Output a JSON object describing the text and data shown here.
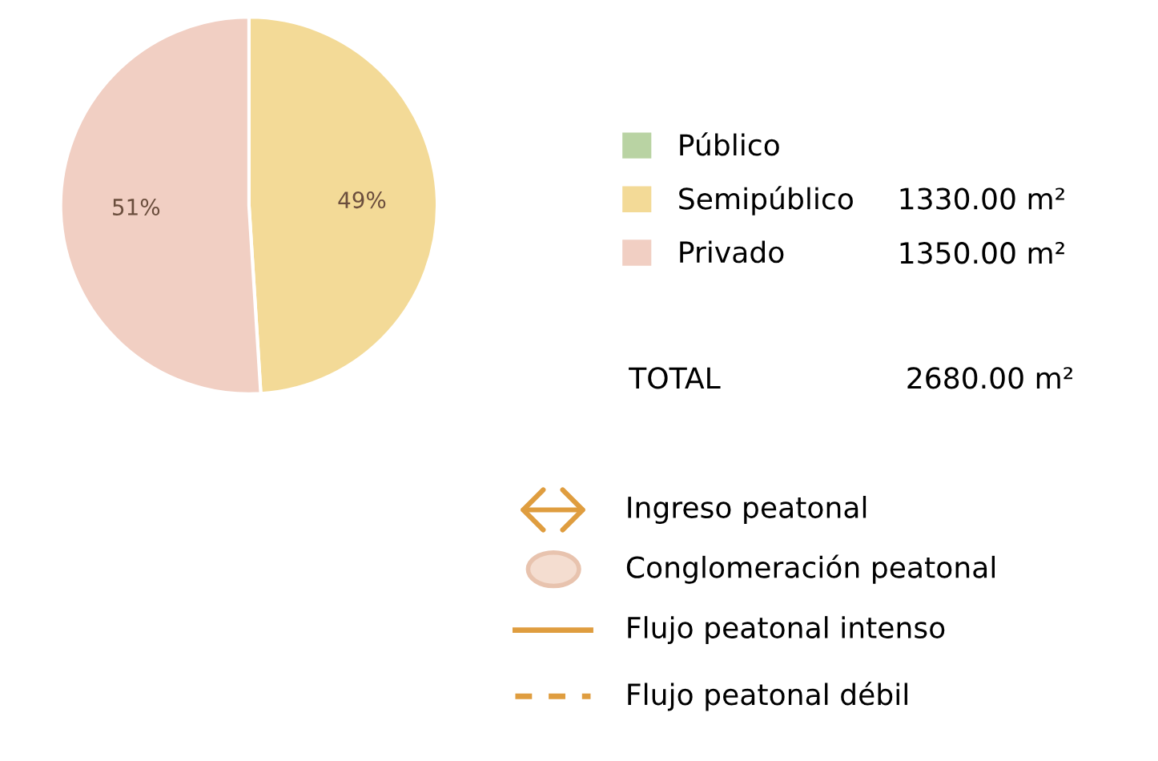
{
  "chart_data": {
    "type": "pie",
    "categories": [
      "Público",
      "Semipúblico",
      "Privado"
    ],
    "values": [
      null,
      49,
      51
    ],
    "colors": [
      "#b9d3a3",
      "#f3da97",
      "#f1cfc3"
    ],
    "value_labels": [
      null,
      "49%",
      "51%"
    ],
    "legend": "right",
    "annotations": [
      "1330.00 m²",
      "1350.00 m²",
      "TOTAL",
      "2680.00 m²",
      "Ingreso peatonal",
      "Conglomeración peatonal",
      "Flujo peatonal intenso",
      "Flujo peatonal débil"
    ]
  }
}
